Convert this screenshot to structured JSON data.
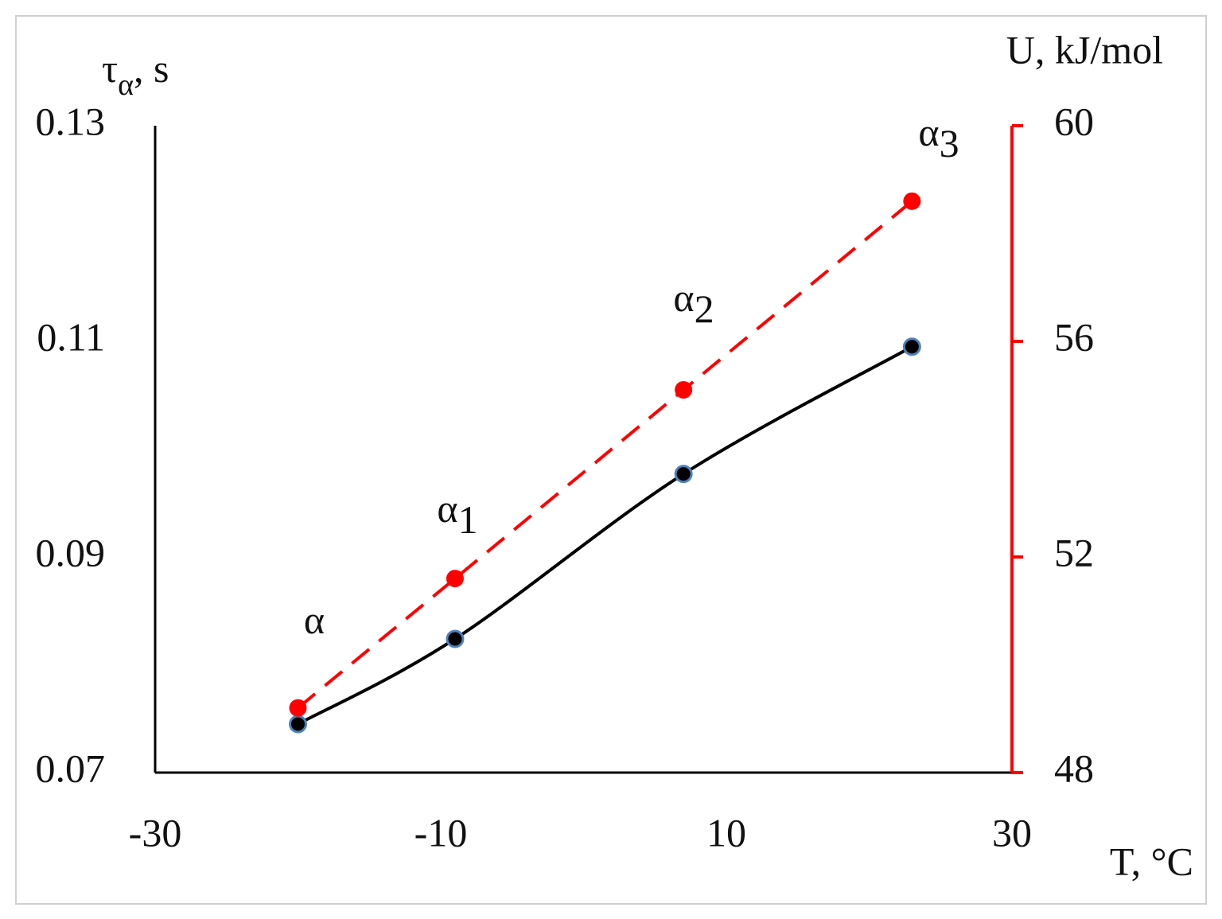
{
  "chart_data": {
    "type": "line",
    "ylabel": {
      "text": "τ",
      "sub": "α",
      "rest": ", s"
    },
    "y2label": "U, kJ/mol",
    "xlabel": "T, °C",
    "x": [
      -20,
      -9,
      7,
      23
    ],
    "xlim": [
      -30,
      30
    ],
    "xticks": [
      -30,
      -10,
      10,
      30
    ],
    "ylim": [
      0.07,
      0.13
    ],
    "yticks": [
      0.07,
      0.09,
      0.11,
      0.13
    ],
    "y2lim": [
      48,
      60
    ],
    "y2ticks": [
      48,
      52,
      56,
      60
    ],
    "series": [
      {
        "color": "#000000",
        "values": [
          0.0745,
          0.0824,
          0.0977,
          0.1095
        ]
      },
      {
        "color": "#ff0000",
        "axis": "y2",
        "values": [
          49.2,
          51.6,
          55.1,
          58.6
        ]
      }
    ],
    "annotations": [
      {
        "text": "α"
      },
      {
        "text": "α",
        "sub": "1"
      },
      {
        "text": "α",
        "sub": "2"
      },
      {
        "text": "α",
        "sub": "3"
      }
    ]
  }
}
